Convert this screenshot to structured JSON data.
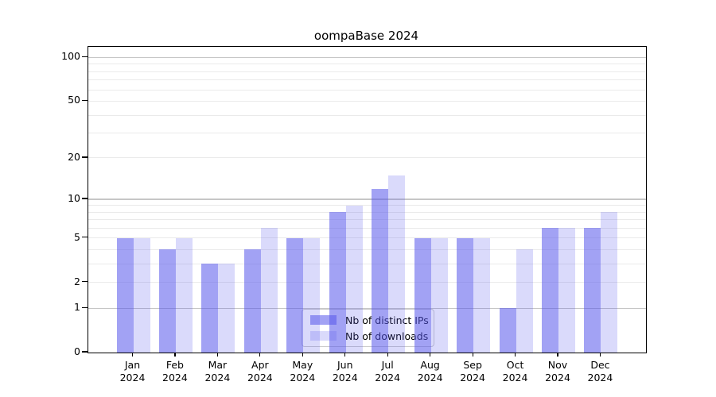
{
  "figure": {
    "background": "#ffffff"
  },
  "chart_data": {
    "type": "bar",
    "title": "oompaBase 2024",
    "categories": [
      "Jan",
      "Feb",
      "Mar",
      "Apr",
      "May",
      "Jun",
      "Jul",
      "Aug",
      "Sep",
      "Oct",
      "Nov",
      "Dec"
    ],
    "category_year": "2024",
    "series": [
      {
        "name": "Nb of distinct IPs",
        "values": [
          5,
          4,
          3,
          4,
          5,
          8,
          12,
          5,
          5,
          1,
          6,
          6
        ],
        "color": "rgba(85,85,235,0.55)"
      },
      {
        "name": "Nb of downloads",
        "values": [
          5,
          5,
          3,
          6,
          5,
          9,
          15,
          5,
          5,
          4,
          6,
          8
        ],
        "color": "rgba(85,85,235,0.22)"
      }
    ],
    "xlabel": "",
    "ylabel": "",
    "yscale": "log1p",
    "ylim": [
      0,
      120
    ],
    "yticks": [
      0,
      1,
      2,
      5,
      10,
      20,
      50,
      100
    ],
    "grid": {
      "on": true,
      "major_values": [
        1,
        10,
        100
      ],
      "minor_values": [
        2,
        3,
        4,
        5,
        6,
        7,
        8,
        9,
        20,
        30,
        40,
        50,
        60,
        70,
        80,
        90
      ],
      "major_color": "#c6c6c6",
      "minor_color": "#eaeaea"
    },
    "legend": {
      "position": "lower center inside",
      "entries": [
        "Nb of distinct IPs",
        "Nb of downloads"
      ]
    }
  }
}
